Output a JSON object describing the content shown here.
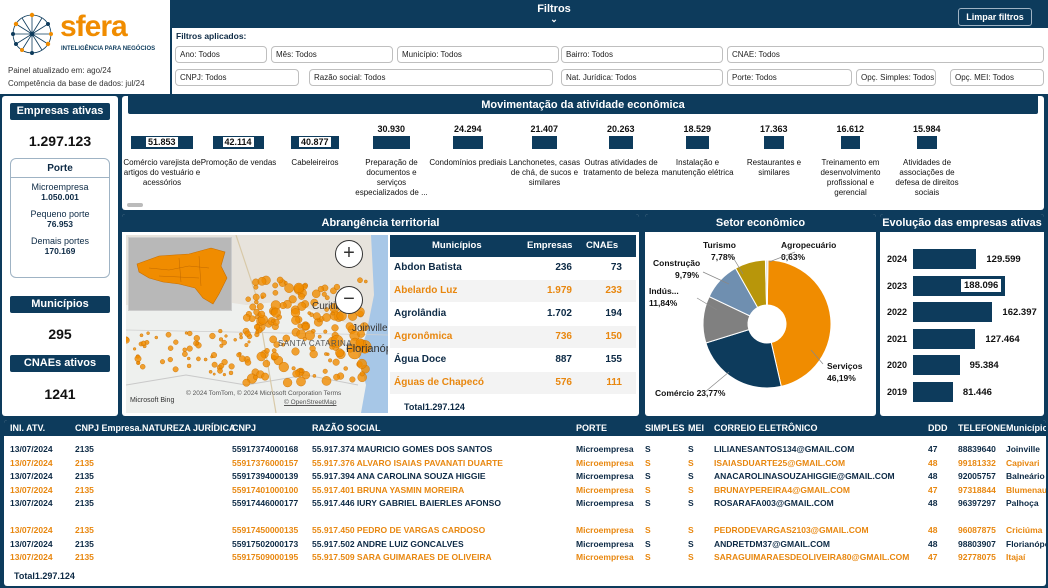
{
  "brand": {
    "name": "sfera",
    "tagline": "INTELIGÊNCIA PARA NEGÓCIOS",
    "updated": "Painel atualizado em: ago/24",
    "competencia": "Competência da base de dados: jul/24"
  },
  "filters": {
    "title": "Filtros",
    "applied_label": "Filtros aplicados:",
    "clear_label": "Limpar filtros",
    "row1": [
      "Ano: Todos",
      "Mês: Todos",
      "Município: Todos",
      "Bairro: Todos",
      "CNAE: Todos"
    ],
    "row2": [
      "CNPJ: Todos",
      "Razão social: Todos",
      "Nat. Jurídica: Todos",
      "Porte: Todos",
      "Opç. Simples: Todos",
      "Opç. MEI: Todos"
    ]
  },
  "kpis": {
    "empresas_label": "Empresas ativas",
    "empresas_value": "1.297.123",
    "porte_title": "Porte",
    "porte": [
      {
        "label": "Microempresa",
        "value": "1.050.001"
      },
      {
        "label": "Pequeno porte",
        "value": "76.953"
      },
      {
        "label": "Demais portes",
        "value": "170.169"
      }
    ],
    "municipios_label": "Municípios",
    "municipios_value": "295",
    "cnaes_label": "CNAEs ativos",
    "cnaes_value": "1241"
  },
  "activity": {
    "title": "Movimentação da atividade econômica",
    "items": [
      {
        "value": 51853,
        "label": "51.853",
        "name": "Comércio varejista de artigos do vestuário e acessórios"
      },
      {
        "value": 42114,
        "label": "42.114",
        "name": "Promoção de vendas"
      },
      {
        "value": 40877,
        "label": "40.877",
        "name": "Cabeleireiros"
      },
      {
        "value": 30930,
        "label": "30.930",
        "name": "Preparação de documentos e serviços especializados de ..."
      },
      {
        "value": 24294,
        "label": "24.294",
        "name": "Condomínios prediais"
      },
      {
        "value": 21407,
        "label": "21.407",
        "name": "Lanchonetes, casas de chá, de sucos e similares"
      },
      {
        "value": 20263,
        "label": "20.263",
        "name": "Outras atividades de tratamento de beleza"
      },
      {
        "value": 18529,
        "label": "18.529",
        "name": "Instalação e manutenção elétrica"
      },
      {
        "value": 17363,
        "label": "17.363",
        "name": "Restaurantes e similares"
      },
      {
        "value": 16612,
        "label": "16.612",
        "name": "Treinamento em desenvolvimento profissional e gerencial"
      },
      {
        "value": 15984,
        "label": "15.984",
        "name": "Atividades de associações de defesa de direitos sociais"
      }
    ]
  },
  "territory": {
    "title": "Abrangência territorial",
    "map_labels": [
      "Curitiba",
      "Joinville",
      "Florianópolis",
      "SANTA CATARINA"
    ],
    "attribution": "© 2024 TomTom, © 2024 Microsoft Corporation  Terms",
    "osm": "© OpenStreetMap",
    "bing": "Microsoft Bing",
    "zoom_in": "+",
    "zoom_out": "−",
    "table": {
      "headers": [
        "Municípios",
        "Empresas",
        "CNAEs"
      ],
      "rows": [
        [
          "Abdon Batista",
          "236",
          "73"
        ],
        [
          "Abelardo Luz",
          "1.979",
          "233"
        ],
        [
          "Agrolândia",
          "1.702",
          "194"
        ],
        [
          "Agronômica",
          "736",
          "150"
        ],
        [
          "Água Doce",
          "887",
          "155"
        ],
        [
          "Águas de Chapecó",
          "576",
          "111"
        ]
      ],
      "total_label": "Total",
      "total_value": "1.297.124"
    }
  },
  "sector": {
    "title": "Setor econômico",
    "chart_data": {
      "type": "pie",
      "slices": [
        {
          "name": "Serviços",
          "value": 46.19,
          "label": "46,19%",
          "color": "#f08c00"
        },
        {
          "name": "Comércio",
          "value": 23.77,
          "label": "23,77%",
          "color": "#0d3b5c"
        },
        {
          "name": "Indústria",
          "value": 11.84,
          "label": "11,84%",
          "color": "#808080"
        },
        {
          "name": "Construção",
          "value": 9.79,
          "label": "9,79%",
          "color": "#6f8fb0"
        },
        {
          "name": "Turismo",
          "value": 7.78,
          "label": "7,78%",
          "color": "#b8960a"
        },
        {
          "name": "Agropecuário",
          "value": 0.63,
          "label": "0,63%",
          "color": "#e0e0e0"
        }
      ],
      "display_labels": [
        "Serviços",
        "Comércio",
        "Indús...",
        "Construção",
        "Turismo",
        "Agropecuário"
      ]
    }
  },
  "evolution": {
    "title": "Evolução das empresas ativas",
    "chart_data": {
      "type": "bar",
      "categories": [
        "2024",
        "2023",
        "2022",
        "2021",
        "2020",
        "2019"
      ],
      "values": [
        129599,
        188096,
        162397,
        127464,
        95384,
        81446
      ],
      "labels": [
        "129.599",
        "188.096",
        "162.397",
        "127.464",
        "95.384",
        "81.446"
      ]
    }
  },
  "table": {
    "headers": [
      "INI. ATV.",
      "CNPJ Empresa.NATUREZA JURÍDICA",
      "CNPJ",
      "RAZÃO SOCIAL",
      "PORTE",
      "SIMPLES",
      "MEI",
      "CORREIO ELETRÔNICO",
      "DDD",
      "TELEFONE",
      "Município"
    ],
    "rows": [
      [
        "13/07/2024",
        "2135",
        "55917374000168",
        "55.917.374 MAURICIO GOMES DOS SANTOS",
        "Microempresa",
        "S",
        "S",
        "LILIANESANTOS134@GMAIL.COM",
        "47",
        "88839640",
        "Joinville"
      ],
      [
        "13/07/2024",
        "2135",
        "55917376000157",
        "55.917.376 ALVARO ISAIAS PAVANATI DUARTE",
        "Microempresa",
        "S",
        "S",
        "ISAIASDUARTE25@GMAIL.COM",
        "48",
        "99181332",
        "Capivari"
      ],
      [
        "13/07/2024",
        "2135",
        "55917394000139",
        "55.917.394 ANA CAROLINA SOUZA HIGGIE",
        "Microempresa",
        "S",
        "S",
        "ANACAROLINASOUZAHIGGIE@GMAIL.COM",
        "48",
        "92005757",
        "Balneário"
      ],
      [
        "13/07/2024",
        "2135",
        "55917401000100",
        "55.917.401 BRUNA YASMIN MOREIRA",
        "Microempresa",
        "S",
        "S",
        "BRUNAYPEREIRA4@GMAIL.COM",
        "47",
        "97318844",
        "Blumenau"
      ],
      [
        "13/07/2024",
        "2135",
        "55917446000177",
        "55.917.446 IURY GABRIEL BAIERLES AFONSO",
        "Microempresa",
        "S",
        "S",
        "ROSARAFA003@GMAIL.COM",
        "48",
        "96397297",
        "Palhoça"
      ],
      [
        "",
        "",
        "",
        "",
        "",
        "",
        "",
        "",
        "",
        "",
        ""
      ],
      [
        "13/07/2024",
        "2135",
        "55917450000135",
        "55.917.450 PEDRO DE VARGAS CARDOSO",
        "Microempresa",
        "S",
        "S",
        "PEDRODEVARGAS2103@GMAIL.COM",
        "48",
        "96087875",
        "Criciúma"
      ],
      [
        "13/07/2024",
        "2135",
        "55917502000173",
        "55.917.502 ANDRE LUIZ GONCALVES",
        "Microempresa",
        "S",
        "S",
        "ANDRETDM37@GMAIL.COM",
        "48",
        "98803907",
        "Florianópolis"
      ],
      [
        "13/07/2024",
        "2135",
        "55917509000195",
        "55.917.509 SARA GUIMARAES DE OLIVEIRA",
        "Microempresa",
        "S",
        "S",
        "SARAGUIMARAESDEOLIVEIRA80@GMAIL.COM",
        "47",
        "92778075",
        "Itajaí"
      ]
    ],
    "total_label": "Total",
    "total_value": "1.297.124"
  }
}
